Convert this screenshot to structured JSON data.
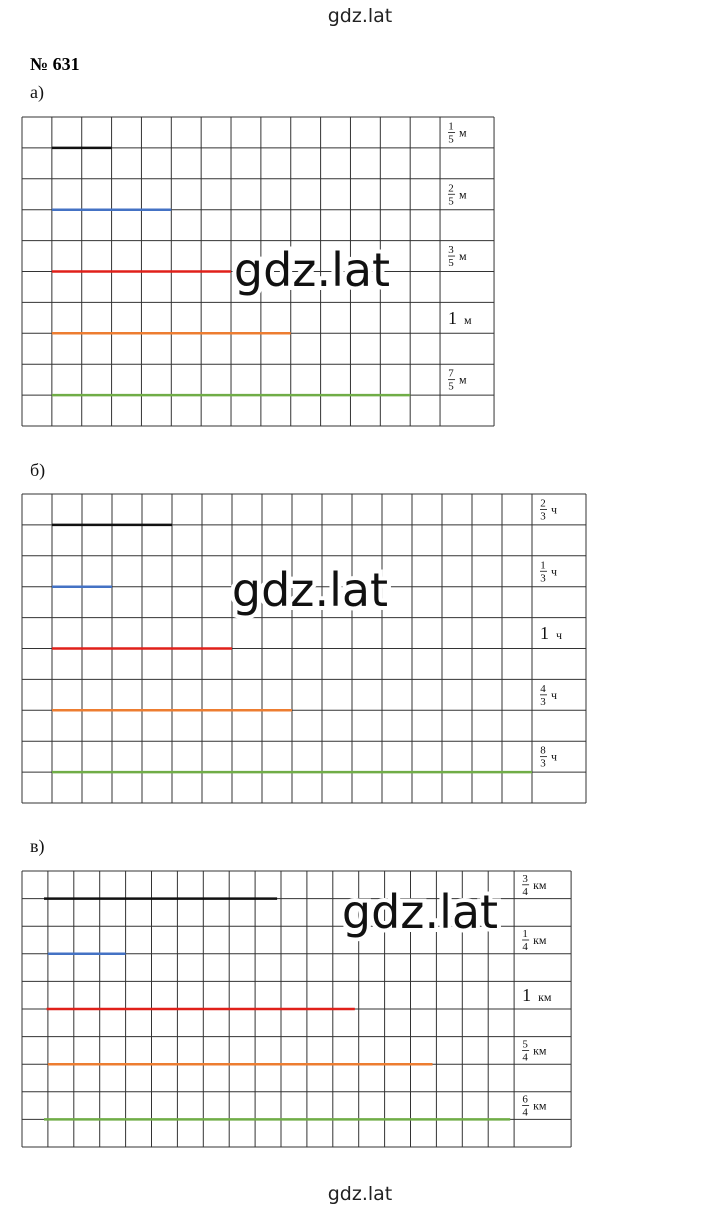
{
  "header": "gdz.lat",
  "footer": "gdz.lat",
  "problem": "№ 631",
  "watermark": "gdz.lat",
  "parts": [
    {
      "label": "а)",
      "rows": [
        {
          "num": "1",
          "den": "5",
          "unit": "м"
        },
        {
          "num": "2",
          "den": "5",
          "unit": "м"
        },
        {
          "num": "3",
          "den": "5",
          "unit": "м"
        },
        {
          "whole": "1",
          "unit": "м"
        },
        {
          "num": "7",
          "den": "5",
          "unit": "м"
        }
      ]
    },
    {
      "label": "б)",
      "rows": [
        {
          "num": "2",
          "den": "3",
          "unit": "ч"
        },
        {
          "num": "1",
          "den": "3",
          "unit": "ч"
        },
        {
          "whole": "1",
          "unit": "ч"
        },
        {
          "num": "4",
          "den": "3",
          "unit": "ч"
        },
        {
          "num": "8",
          "den": "3",
          "unit": "ч"
        }
      ]
    },
    {
      "label": "в)",
      "rows": [
        {
          "num": "3",
          "den": "4",
          "unit": "км"
        },
        {
          "num": "1",
          "den": "4",
          "unit": "км"
        },
        {
          "whole": "1",
          "unit": "км"
        },
        {
          "num": "5",
          "den": "4",
          "unit": "км"
        },
        {
          "num": "6",
          "den": "4",
          "unit": "км"
        }
      ]
    }
  ]
}
